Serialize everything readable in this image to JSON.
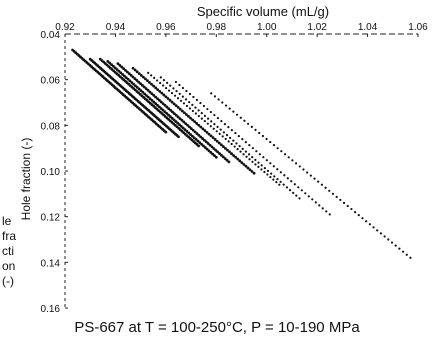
{
  "chart_data": {
    "type": "scatter",
    "title": "",
    "caption": "PS-667 at T = 100-250°C, P = 10-190 MPa",
    "xlabel": "Specific volume (mL/g)",
    "ylabel": "Hole fraction (-)",
    "ylabel_wrapped": [
      "le",
      "fra",
      "cti",
      "on",
      "(-)"
    ],
    "xaxis_position": "top",
    "yaxis_inverted": true,
    "xlim": [
      0.92,
      1.06
    ],
    "ylim": [
      0.04,
      0.16
    ],
    "xticks": [
      "0.92",
      "0.94",
      "0.96",
      "0.98",
      "1.00",
      "1.02",
      "1.04",
      "1.06"
    ],
    "yticks": [
      "0.04",
      "0.06",
      "0.08",
      "0.10",
      "0.12",
      "0.14",
      "0.16"
    ],
    "grid": false,
    "legend": "none",
    "series": [
      {
        "x_start": 0.923,
        "y_start": 0.047,
        "x_end": 0.96,
        "y_end": 0.083,
        "n": 60
      },
      {
        "x_start": 0.93,
        "y_start": 0.051,
        "x_end": 0.965,
        "y_end": 0.085,
        "n": 60
      },
      {
        "x_start": 0.934,
        "y_start": 0.051,
        "x_end": 0.973,
        "y_end": 0.089,
        "n": 60
      },
      {
        "x_start": 0.937,
        "y_start": 0.052,
        "x_end": 0.98,
        "y_end": 0.094,
        "n": 60
      },
      {
        "x_start": 0.941,
        "y_start": 0.053,
        "x_end": 0.985,
        "y_end": 0.096,
        "n": 60
      },
      {
        "x_start": 0.947,
        "y_start": 0.055,
        "x_end": 0.995,
        "y_end": 0.101,
        "n": 60
      },
      {
        "x_start": 0.953,
        "y_start": 0.057,
        "x_end": 1.005,
        "y_end": 0.106,
        "n": 45
      },
      {
        "x_start": 0.958,
        "y_start": 0.059,
        "x_end": 1.013,
        "y_end": 0.112,
        "n": 45
      },
      {
        "x_start": 0.964,
        "y_start": 0.061,
        "x_end": 1.025,
        "y_end": 0.119,
        "n": 45
      },
      {
        "x_start": 0.978,
        "y_start": 0.066,
        "x_end": 1.057,
        "y_end": 0.138,
        "n": 55
      }
    ]
  }
}
